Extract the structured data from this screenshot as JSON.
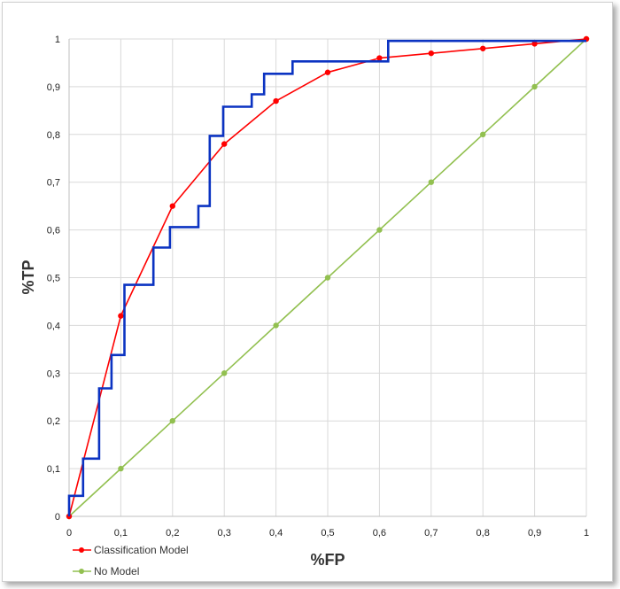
{
  "chart_data": {
    "type": "line",
    "xlabel": "%FP",
    "ylabel": "%TP",
    "xlim": [
      0,
      1
    ],
    "ylim": [
      0,
      1
    ],
    "grid": true,
    "legend_position": "bottom-left",
    "x_ticks": [
      "0",
      "0,1",
      "0,2",
      "0,3",
      "0,4",
      "0,5",
      "0,6",
      "0,7",
      "0,8",
      "0,9",
      "1"
    ],
    "y_ticks": [
      "0",
      "0,1",
      "0,2",
      "0,3",
      "0,4",
      "0,5",
      "0,6",
      "0,7",
      "0,8",
      "0,9",
      "1"
    ],
    "series": [
      {
        "name": "Classification Model",
        "color": "#ff0000",
        "marker": "circle",
        "x": [
          0,
          0.1,
          0.2,
          0.3,
          0.4,
          0.5,
          0.6,
          0.7,
          0.8,
          0.9,
          1.0
        ],
        "y": [
          0,
          0.42,
          0.65,
          0.78,
          0.87,
          0.93,
          0.96,
          0.97,
          0.98,
          0.99,
          1.0
        ]
      },
      {
        "name": "No Model",
        "color": "#92c050",
        "marker": "circle",
        "x": [
          0,
          0.1,
          0.2,
          0.3,
          0.4,
          0.5,
          0.6,
          0.7,
          0.8,
          0.9,
          1.0
        ],
        "y": [
          0,
          0.1,
          0.2,
          0.3,
          0.4,
          0.5,
          0.6,
          0.7,
          0.8,
          0.9,
          1.0
        ]
      },
      {
        "color": "#0b33c2",
        "marker": "none",
        "step": true,
        "x": [
          0,
          0,
          0.027,
          0.027,
          0.058,
          0.058,
          0.082,
          0.082,
          0.107,
          0.107,
          0.163,
          0.163,
          0.195,
          0.195,
          0.25,
          0.25,
          0.272,
          0.272,
          0.298,
          0.298,
          0.353,
          0.353,
          0.377,
          0.377,
          0.432,
          0.432,
          0.617,
          0.617,
          1.0
        ],
        "y": [
          0,
          0.043,
          0.043,
          0.121,
          0.121,
          0.268,
          0.268,
          0.338,
          0.338,
          0.485,
          0.485,
          0.563,
          0.563,
          0.606,
          0.606,
          0.65,
          0.65,
          0.797,
          0.797,
          0.858,
          0.858,
          0.884,
          0.884,
          0.927,
          0.927,
          0.953,
          0.953,
          0.996,
          0.996
        ]
      }
    ]
  }
}
